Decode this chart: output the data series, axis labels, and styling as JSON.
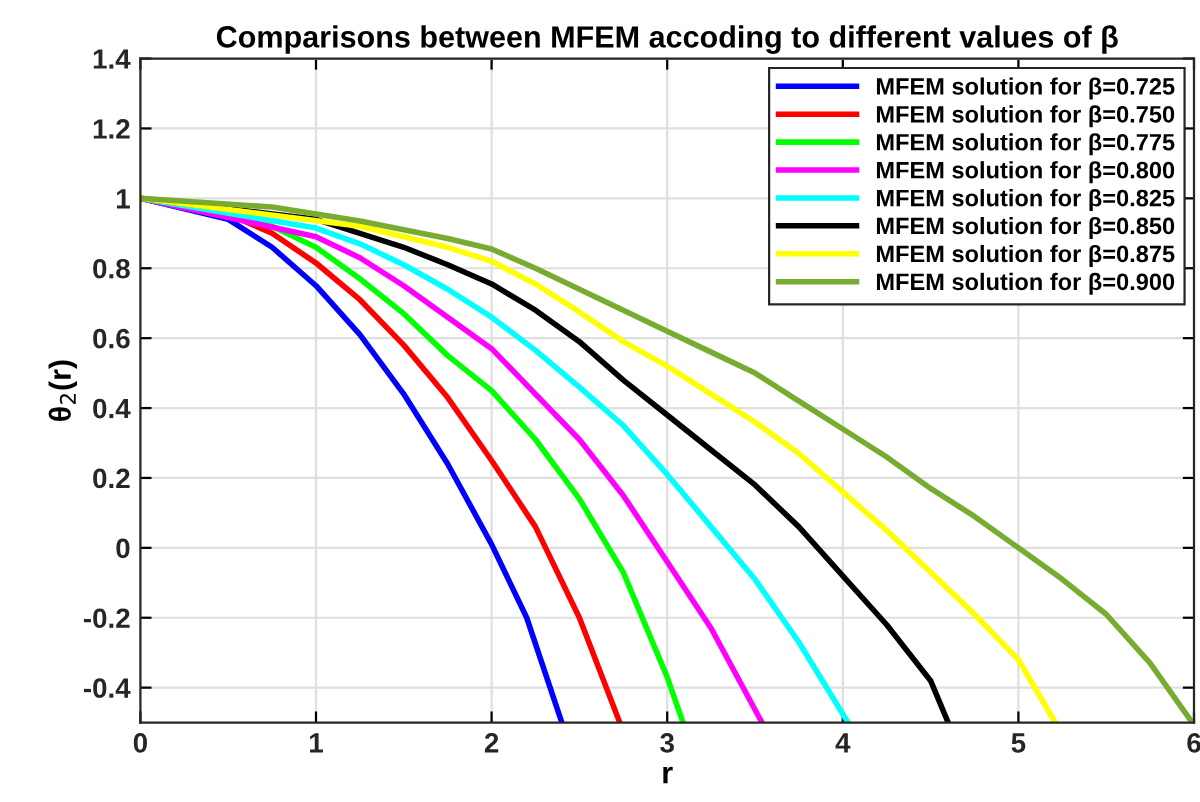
{
  "chart_data": {
    "type": "line",
    "title": "Comparisons between MFEM accoding to different values of β",
    "xlabel": "r",
    "ylabel": "θ$_{2}$(r)",
    "xlim": [
      0,
      6
    ],
    "ylim": [
      -0.5,
      1.4
    ],
    "xticks": [
      0,
      1,
      2,
      3,
      4,
      5,
      6
    ],
    "yticks": [
      -0.4,
      -0.2,
      0,
      0.2,
      0.4,
      0.6,
      0.8,
      1,
      1.2,
      1.4
    ],
    "grid": true,
    "legend": "top right",
    "marker": "none",
    "line_style": "solid",
    "series": [
      {
        "name": "MFEM solution for β=0.725",
        "color": "#0000ff",
        "x": [
          0,
          0.5,
          0.75,
          1,
          1.25,
          1.5,
          1.75,
          2,
          2.2,
          2.4
        ],
        "values": [
          1,
          0.94,
          0.86,
          0.75,
          0.61,
          0.44,
          0.24,
          0.01,
          -0.2,
          -0.5
        ]
      },
      {
        "name": "MFEM solution for β=0.750",
        "color": "#ff0000",
        "x": [
          0,
          0.5,
          0.75,
          1,
          1.25,
          1.5,
          1.75,
          2,
          2.25,
          2.5,
          2.73
        ],
        "values": [
          1,
          0.955,
          0.9,
          0.815,
          0.71,
          0.58,
          0.43,
          0.25,
          0.06,
          -0.2,
          -0.5
        ]
      },
      {
        "name": "MFEM solution for β=0.775",
        "color": "#00ff00",
        "x": [
          0,
          0.75,
          1,
          1.25,
          1.5,
          1.75,
          2,
          2.25,
          2.5,
          2.75,
          3,
          3.09
        ],
        "values": [
          1,
          0.92,
          0.86,
          0.77,
          0.67,
          0.55,
          0.45,
          0.31,
          0.14,
          -0.07,
          -0.37,
          -0.5
        ]
      },
      {
        "name": "MFEM solution for β=0.800",
        "color": "#ff00ff",
        "x": [
          0,
          1,
          1.25,
          1.5,
          1.75,
          2,
          2.25,
          2.5,
          2.75,
          3,
          3.25,
          3.54
        ],
        "values": [
          1,
          0.89,
          0.83,
          0.75,
          0.66,
          0.57,
          0.44,
          0.31,
          0.15,
          -0.04,
          -0.23,
          -0.5
        ]
      },
      {
        "name": "MFEM solution for β=0.825",
        "color": "#00ffff",
        "x": [
          0,
          1,
          1.25,
          1.5,
          1.75,
          2,
          2.25,
          2.5,
          2.75,
          3,
          3.25,
          3.5,
          3.75,
          4.03
        ],
        "values": [
          1,
          0.915,
          0.87,
          0.81,
          0.74,
          0.66,
          0.565,
          0.46,
          0.35,
          0.21,
          0.06,
          -0.09,
          -0.27,
          -0.5
        ]
      },
      {
        "name": "MFEM solution for β=0.850",
        "color": "#000000",
        "x": [
          0,
          1,
          1.25,
          1.5,
          1.75,
          2,
          2.25,
          2.5,
          2.75,
          3,
          3.25,
          3.5,
          3.75,
          4,
          4.25,
          4.5,
          4.6
        ],
        "values": [
          1,
          0.94,
          0.9,
          0.86,
          0.81,
          0.755,
          0.68,
          0.59,
          0.48,
          0.38,
          0.28,
          0.18,
          0.06,
          -0.08,
          -0.22,
          -0.38,
          -0.5
        ]
      },
      {
        "name": "MFEM solution for β=0.875",
        "color": "#ffff00",
        "x": [
          0,
          1.25,
          1.5,
          1.75,
          2,
          2.25,
          2.5,
          2.75,
          3,
          3.25,
          3.5,
          3.75,
          4,
          4.25,
          4.5,
          4.75,
          5,
          5.21
        ],
        "values": [
          1,
          0.92,
          0.89,
          0.86,
          0.82,
          0.755,
          0.675,
          0.59,
          0.52,
          0.44,
          0.36,
          0.27,
          0.16,
          0.05,
          -0.07,
          -0.19,
          -0.32,
          -0.5
        ]
      },
      {
        "name": "MFEM solution for β=0.900",
        "color": "#77ac30",
        "x": [
          0,
          0.75,
          1,
          1.25,
          1.5,
          1.75,
          2,
          2.25,
          2.5,
          2.75,
          3,
          3.25,
          3.5,
          3.75,
          4,
          4.25,
          4.5,
          4.75,
          5,
          5.25,
          5.5,
          5.75,
          5.99
        ],
        "values": [
          1,
          0.975,
          0.955,
          0.935,
          0.91,
          0.885,
          0.855,
          0.8,
          0.74,
          0.68,
          0.62,
          0.56,
          0.5,
          0.42,
          0.34,
          0.26,
          0.17,
          0.09,
          0,
          -0.09,
          -0.19,
          -0.33,
          -0.5
        ]
      }
    ]
  }
}
